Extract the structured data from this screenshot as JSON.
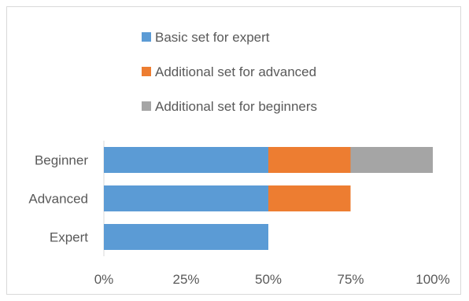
{
  "chart_data": {
    "type": "bar",
    "orientation": "horizontal",
    "stacked": true,
    "categories": [
      "Beginner",
      "Advanced",
      "Expert"
    ],
    "series": [
      {
        "name": "Basic set for expert",
        "values": [
          50,
          50,
          50
        ],
        "color": "#5b9bd5"
      },
      {
        "name": "Additional set for advanced",
        "values": [
          25,
          25,
          0
        ],
        "color": "#ed7d31"
      },
      {
        "name": "Additional set for beginners",
        "values": [
          25,
          0,
          0
        ],
        "color": "#a5a5a5"
      }
    ],
    "x_ticks": [
      "0%",
      "25%",
      "50%",
      "75%",
      "100%"
    ],
    "xlim": [
      0,
      100
    ],
    "grid": false,
    "legend_position": "top",
    "title": "",
    "xlabel": "",
    "ylabel": ""
  }
}
